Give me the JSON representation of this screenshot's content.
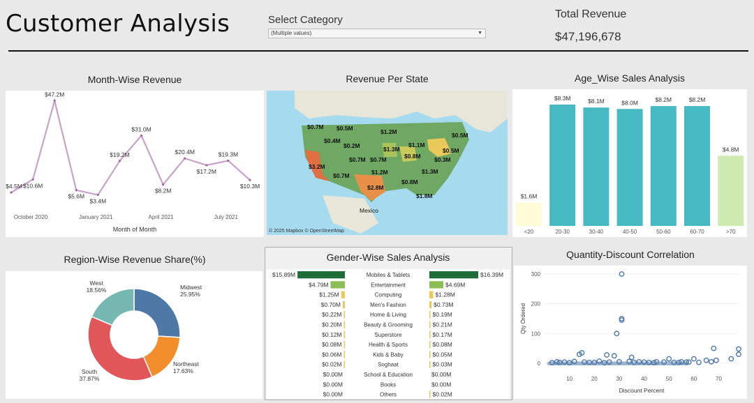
{
  "header": {
    "title": "Customer Analysis",
    "filter_label": "Select Category",
    "filter_value": "(Multiple values)",
    "revenue_label": "Total Revenue",
    "revenue_value": "$47,196,678"
  },
  "panels": {
    "month": "Month-Wise Revenue",
    "state": "Revenue Per State",
    "age": "Age_Wise Sales Analysis",
    "region": "Region-Wise Revenue Share(%)",
    "gender": "Gender-Wise Sales Analysis",
    "qty": "Quantity-Discount Correlation"
  },
  "colors": {
    "line": "#c8a2c8",
    "line_dark": "#9b6b9b",
    "bar_teal": "#47b9c3",
    "bar_light_yellow": "#fffbd6",
    "bar_light_green": "#cdeab0",
    "midwest": "#4e79a7",
    "northeast": "#f28e2b",
    "south": "#e15759",
    "west": "#76b7b2",
    "dark_green": "#1f6e3a",
    "mid_green": "#8dbd55",
    "yellow": "#e8c95a",
    "scatter": "#4e79a7"
  },
  "chart_data": [
    {
      "type": "line",
      "title": "Month-Wise Revenue",
      "xlabel": "Month of Month",
      "x_ticks": [
        "October 2020",
        "January 2021",
        "April 2021",
        "July 2021"
      ],
      "values": [
        4.5,
        10.6,
        47.2,
        5.6,
        3.4,
        19.2,
        31.0,
        8.2,
        20.4,
        17.2,
        19.3,
        10.3
      ],
      "labels": [
        "$4.5M",
        "$10.6M",
        "$47.2M",
        "$5.6M",
        "$3.4M",
        "$19.2M",
        "$31.0M",
        "$8.2M",
        "$20.4M",
        "$17.2M",
        "$19.3M",
        "$10.3M"
      ]
    },
    {
      "type": "bar",
      "title": "Age_Wise Sales Analysis",
      "categories": [
        "<20",
        "20-30",
        "30-40",
        "40-50",
        "50-60",
        "60-70",
        ">70"
      ],
      "values": [
        1.6,
        8.3,
        8.1,
        8.0,
        8.2,
        8.2,
        4.8
      ],
      "labels": [
        "$1.6M",
        "$8.3M",
        "$8.1M",
        "$8.0M",
        "$8.2M",
        "$8.2M",
        "$4.8M"
      ]
    },
    {
      "type": "pie",
      "title": "Region-Wise Revenue Share(%)",
      "slices": [
        {
          "name": "Midwest",
          "value": 25.95,
          "label": "25.95%"
        },
        {
          "name": "Northeast",
          "value": 17.63,
          "label": "17.63%"
        },
        {
          "name": "South",
          "value": 37.87,
          "label": "37.87%"
        },
        {
          "name": "West",
          "value": 18.56,
          "label": "18.56%"
        }
      ]
    },
    {
      "type": "bar",
      "title": "Gender-Wise Sales Analysis",
      "categories": [
        "Mobiles & Tablets",
        "Entertainment",
        "Computing",
        "Men's Fashion",
        "Home & Living",
        "Beauty & Grooming",
        "Superstore",
        "Health & Sports",
        "Kids & Baby",
        "Soghaat",
        "School & Education",
        "Books",
        "Others"
      ],
      "series": [
        {
          "values": [
            15.89,
            4.79,
            1.25,
            0.7,
            0.22,
            0.2,
            0.12,
            0.08,
            0.06,
            0.02,
            0.0,
            0.0,
            0.0
          ],
          "labels": [
            "$15.89M",
            "$4.79M",
            "$1.25M",
            "$0.70M",
            "$0.22M",
            "$0.20M",
            "$0.12M",
            "$0.08M",
            "$0.06M",
            "$0.02M",
            "$0.00M",
            "$0.00M",
            "$0.00M"
          ]
        },
        {
          "values": [
            16.39,
            4.69,
            1.28,
            0.73,
            0.19,
            0.21,
            0.17,
            0.08,
            0.05,
            0.03,
            0.0,
            0.0,
            0.02
          ],
          "labels": [
            "$16.39M",
            "$4.69M",
            "$1.28M",
            "$0.73M",
            "$0.19M",
            "$0.21M",
            "$0.17M",
            "$0.08M",
            "$0.05M",
            "$0.03M",
            "$0.00M",
            "$0.00M",
            "$0.02M"
          ]
        }
      ]
    },
    {
      "type": "scatter",
      "title": "Quantity-Discount Correlation",
      "xlabel": "Discount Percent",
      "ylabel": "Qty Ordered",
      "x_ticks": [
        10,
        20,
        30,
        40,
        50,
        60,
        70
      ],
      "y_ticks": [
        0,
        100,
        200,
        300
      ],
      "points": [
        [
          31,
          300
        ],
        [
          31,
          150
        ],
        [
          31,
          145
        ],
        [
          29,
          100
        ],
        [
          68,
          50
        ],
        [
          78,
          48
        ],
        [
          78,
          30
        ],
        [
          15,
          35
        ],
        [
          14,
          30
        ],
        [
          25,
          28
        ],
        [
          28,
          25
        ],
        [
          35,
          20
        ],
        [
          50,
          15
        ],
        [
          60,
          15
        ],
        [
          65,
          10
        ],
        [
          69,
          10
        ],
        [
          75,
          15
        ],
        [
          5,
          5
        ],
        [
          8,
          4
        ],
        [
          12,
          6
        ],
        [
          18,
          3
        ],
        [
          22,
          7
        ],
        [
          26,
          4
        ],
        [
          34,
          6
        ],
        [
          38,
          5
        ],
        [
          42,
          3
        ],
        [
          45,
          5
        ],
        [
          48,
          4
        ],
        [
          52,
          3
        ],
        [
          55,
          5
        ],
        [
          58,
          4
        ],
        [
          62,
          3
        ],
        [
          67,
          5
        ],
        [
          3,
          2
        ],
        [
          6,
          3
        ],
        [
          10,
          2
        ],
        [
          16,
          4
        ],
        [
          20,
          3
        ],
        [
          24,
          2
        ],
        [
          30,
          5
        ],
        [
          36,
          3
        ],
        [
          40,
          4
        ],
        [
          44,
          2
        ],
        [
          54,
          3
        ],
        [
          57,
          4
        ]
      ]
    }
  ],
  "map": {
    "labels": [
      "$0.7M",
      "$0.5M",
      "$1.2M",
      "$0.4M",
      "$0.2M",
      "$0.5M",
      "$1.3M",
      "$1.1M",
      "$0.5M",
      "$0.8M",
      "$0.3M",
      "$3.2M",
      "$0.7M",
      "$0.7M",
      "$1.2M",
      "$1.3M",
      "$0.7M",
      "$2.8M",
      "$0.8M",
      "$1.8M"
    ],
    "country": "Mexico",
    "attribution": "© 2025 Mapbox © OpenStreetMap"
  }
}
